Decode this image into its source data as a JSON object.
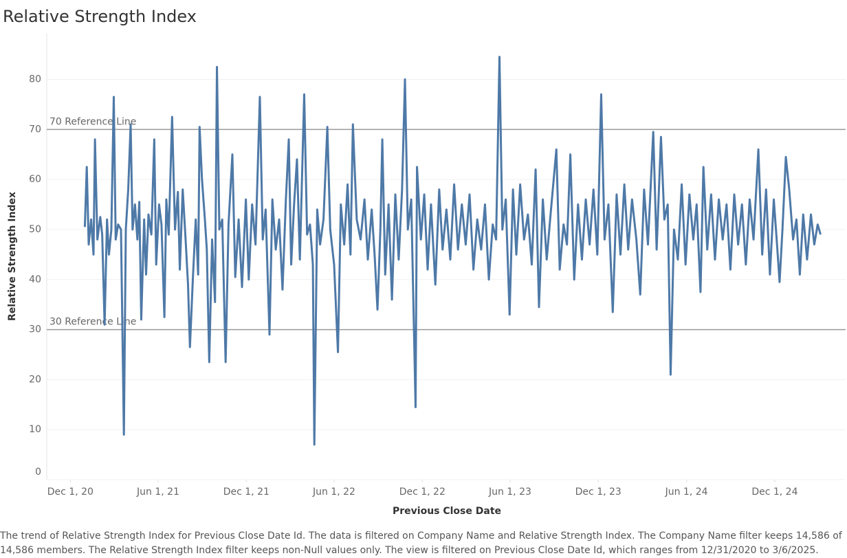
{
  "chart_data": {
    "type": "line",
    "title": "Relative Strength Index",
    "x_label": "Previous Close Date",
    "y_label": "Relative Strength Index",
    "caption": "The trend of Relative Strength Index for Previous Close Date Id. The data is filtered on Company Name and Relative Strength Index. The Company Name filter keeps 14,586 of 14,586 members. The Relative Strength Index filter keeps non-Null values only. The view is filtered on Previous Close Date Id, which ranges from 12/31/2020 to 3/6/2025.",
    "color": "#4e79a7",
    "grid": true,
    "xlim": [
      "2020-10-13",
      "2025-04-27"
    ],
    "xticks": [
      {
        "value": "2020-12-01",
        "label": "Dec 1, 20"
      },
      {
        "value": "2021-06-01",
        "label": "Jun 1, 21"
      },
      {
        "value": "2021-12-01",
        "label": "Dec 1, 21"
      },
      {
        "value": "2022-06-01",
        "label": "Jun 1, 22"
      },
      {
        "value": "2022-12-01",
        "label": "Dec 1, 22"
      },
      {
        "value": "2023-06-01",
        "label": "Jun 1, 23"
      },
      {
        "value": "2023-12-01",
        "label": "Dec 1, 23"
      },
      {
        "value": "2024-06-01",
        "label": "Jun 1, 24"
      },
      {
        "value": "2024-12-01",
        "label": "Dec 1, 24"
      }
    ],
    "ylim": [
      0,
      89
    ],
    "yticks": [
      0,
      10,
      20,
      30,
      40,
      50,
      60,
      70,
      80
    ],
    "reference_lines": [
      {
        "value": 70,
        "label": "70 Reference Line"
      },
      {
        "value": 30,
        "label": "30 Reference Line"
      }
    ],
    "x": [
      "2020-12-31",
      "2021-01-04",
      "2021-01-08",
      "2021-01-13",
      "2021-01-18",
      "2021-01-21",
      "2021-01-26",
      "2021-02-01",
      "2021-02-05",
      "2021-02-10",
      "2021-02-15",
      "2021-02-19",
      "2021-02-24",
      "2021-03-01",
      "2021-03-05",
      "2021-03-10",
      "2021-03-16",
      "2021-03-22",
      "2021-03-26",
      "2021-03-31",
      "2021-04-05",
      "2021-04-09",
      "2021-04-14",
      "2021-04-19",
      "2021-04-23",
      "2021-04-27",
      "2021-05-03",
      "2021-05-07",
      "2021-05-12",
      "2021-05-18",
      "2021-05-24",
      "2021-05-28",
      "2021-06-03",
      "2021-06-08",
      "2021-06-14",
      "2021-06-18",
      "2021-06-23",
      "2021-06-30",
      "2021-07-06",
      "2021-07-12",
      "2021-07-16",
      "2021-07-22",
      "2021-07-28",
      "2021-08-02",
      "2021-08-06",
      "2021-08-12",
      "2021-08-18",
      "2021-08-23",
      "2021-08-26",
      "2021-08-31",
      "2021-09-06",
      "2021-09-10",
      "2021-09-15",
      "2021-09-21",
      "2021-09-27",
      "2021-10-01",
      "2021-10-06",
      "2021-10-12",
      "2021-10-19",
      "2021-10-25",
      "2021-11-02",
      "2021-11-08",
      "2021-11-15",
      "2021-11-22",
      "2021-11-30",
      "2021-12-06",
      "2021-12-13",
      "2021-12-20",
      "2021-12-29",
      "2022-01-04",
      "2022-01-10",
      "2022-01-18",
      "2022-01-24",
      "2022-01-31",
      "2022-02-07",
      "2022-02-14",
      "2022-02-21",
      "2022-02-27",
      "2022-03-04",
      "2022-03-10",
      "2022-03-16",
      "2022-03-22",
      "2022-03-31",
      "2022-04-06",
      "2022-04-12",
      "2022-04-18",
      "2022-04-21",
      "2022-04-27",
      "2022-05-03",
      "2022-05-10",
      "2022-05-18",
      "2022-05-24",
      "2022-06-01",
      "2022-06-09",
      "2022-06-15",
      "2022-06-22",
      "2022-06-29",
      "2022-07-05",
      "2022-07-10",
      "2022-07-18",
      "2022-07-26",
      "2022-08-03",
      "2022-08-10",
      "2022-08-18",
      "2022-08-24",
      "2022-08-30",
      "2022-09-05",
      "2022-09-09",
      "2022-09-15",
      "2022-09-22",
      "2022-09-29",
      "2022-10-06",
      "2022-10-13",
      "2022-10-20",
      "2022-10-26",
      "2022-11-01",
      "2022-11-08",
      "2022-11-17",
      "2022-11-20",
      "2022-11-28",
      "2022-12-05",
      "2022-12-12",
      "2022-12-19",
      "2022-12-28",
      "2023-01-05",
      "2023-01-12",
      "2023-01-20",
      "2023-01-28",
      "2023-02-05",
      "2023-02-13",
      "2023-02-21",
      "2023-03-01",
      "2023-03-09",
      "2023-03-17",
      "2023-03-25",
      "2023-04-02",
      "2023-04-10",
      "2023-04-18",
      "2023-04-26",
      "2023-05-03",
      "2023-05-10",
      "2023-05-16",
      "2023-05-23",
      "2023-05-31",
      "2023-06-07",
      "2023-06-14",
      "2023-06-22",
      "2023-06-30",
      "2023-07-08",
      "2023-07-16",
      "2023-07-24",
      "2023-07-31",
      "2023-08-08",
      "2023-08-16",
      "2023-08-24",
      "2023-09-05",
      "2023-09-12",
      "2023-09-20",
      "2023-09-27",
      "2023-10-04",
      "2023-10-12",
      "2023-10-20",
      "2023-10-28",
      "2023-11-05",
      "2023-11-13",
      "2023-11-21",
      "2023-11-29",
      "2023-12-07",
      "2023-12-14",
      "2023-12-22",
      "2023-12-31",
      "2024-01-08",
      "2024-01-16",
      "2024-01-24",
      "2024-02-01",
      "2024-02-09",
      "2024-02-18",
      "2024-02-26",
      "2024-03-05",
      "2024-03-13",
      "2024-03-24",
      "2024-03-31",
      "2024-04-09",
      "2024-04-16",
      "2024-04-23",
      "2024-04-29",
      "2024-05-06",
      "2024-05-14",
      "2024-05-22",
      "2024-05-30",
      "2024-06-07",
      "2024-06-15",
      "2024-06-22",
      "2024-06-30",
      "2024-07-06",
      "2024-07-14",
      "2024-07-22",
      "2024-07-30",
      "2024-08-07",
      "2024-08-15",
      "2024-08-23",
      "2024-08-31",
      "2024-09-08",
      "2024-09-16",
      "2024-09-24",
      "2024-10-02",
      "2024-10-10",
      "2024-10-18",
      "2024-10-28",
      "2024-11-05",
      "2024-11-13",
      "2024-11-21",
      "2024-11-29",
      "2024-12-05",
      "2024-12-11",
      "2024-12-17",
      "2024-12-24",
      "2024-12-31",
      "2025-01-08",
      "2025-01-15",
      "2025-01-22",
      "2025-01-29",
      "2025-02-06",
      "2025-02-14",
      "2025-02-21",
      "2025-02-28",
      "2025-03-06"
    ],
    "values": [
      50.5,
      62.5,
      47,
      52,
      45,
      68,
      48,
      52.5,
      49,
      31,
      52,
      45,
      50,
      76.5,
      48,
      51,
      50,
      9,
      50,
      58,
      71,
      50,
      55,
      48,
      55.5,
      32,
      52,
      41,
      53,
      49,
      68,
      43,
      55,
      51,
      32.5,
      56,
      49,
      72.5,
      50,
      57.5,
      42,
      58,
      48,
      39,
      26.5,
      40,
      52,
      41,
      70.5,
      60,
      52,
      46,
      23.5,
      48,
      35.5,
      82.5,
      50,
      52,
      23.5,
      51,
      65,
      40.5,
      52,
      38.5,
      56,
      40,
      55,
      47,
      76.5,
      48,
      54,
      29,
      56,
      46,
      52,
      38,
      56,
      68,
      43,
      55,
      64,
      44,
      77,
      49,
      51,
      43,
      7,
      54,
      47,
      52,
      70.5,
      50,
      43,
      25.5,
      55,
      47,
      59,
      45,
      71,
      52,
      48,
      56,
      44,
      54,
      45,
      34,
      50,
      68,
      41,
      55,
      36,
      57,
      44,
      58,
      80,
      50,
      56,
      14.5,
      62.5,
      48,
      57,
      42,
      55,
      39,
      58,
      46,
      54,
      44,
      59,
      46,
      55,
      47,
      57,
      42,
      52,
      46,
      55,
      40,
      51,
      48,
      84.5,
      50,
      56,
      33,
      58,
      45,
      59,
      48,
      53,
      43,
      62,
      34.5,
      56,
      44,
      53,
      66,
      42,
      51,
      47,
      65,
      40,
      55,
      44,
      56,
      47,
      58,
      45,
      77,
      48,
      55,
      33.5,
      57,
      45,
      59,
      46,
      56,
      48,
      37,
      58,
      47,
      69.5,
      46,
      68.5,
      52,
      55,
      21,
      50,
      44,
      59,
      43,
      57,
      48,
      55,
      37.5,
      62.5,
      46,
      57,
      44,
      56,
      48,
      55,
      42,
      57,
      47,
      55,
      43,
      56,
      48,
      66,
      45,
      58,
      41,
      56,
      48,
      39.5,
      50,
      64.5,
      58,
      48,
      52,
      41,
      53,
      44,
      53,
      47,
      51,
      49
    ]
  }
}
